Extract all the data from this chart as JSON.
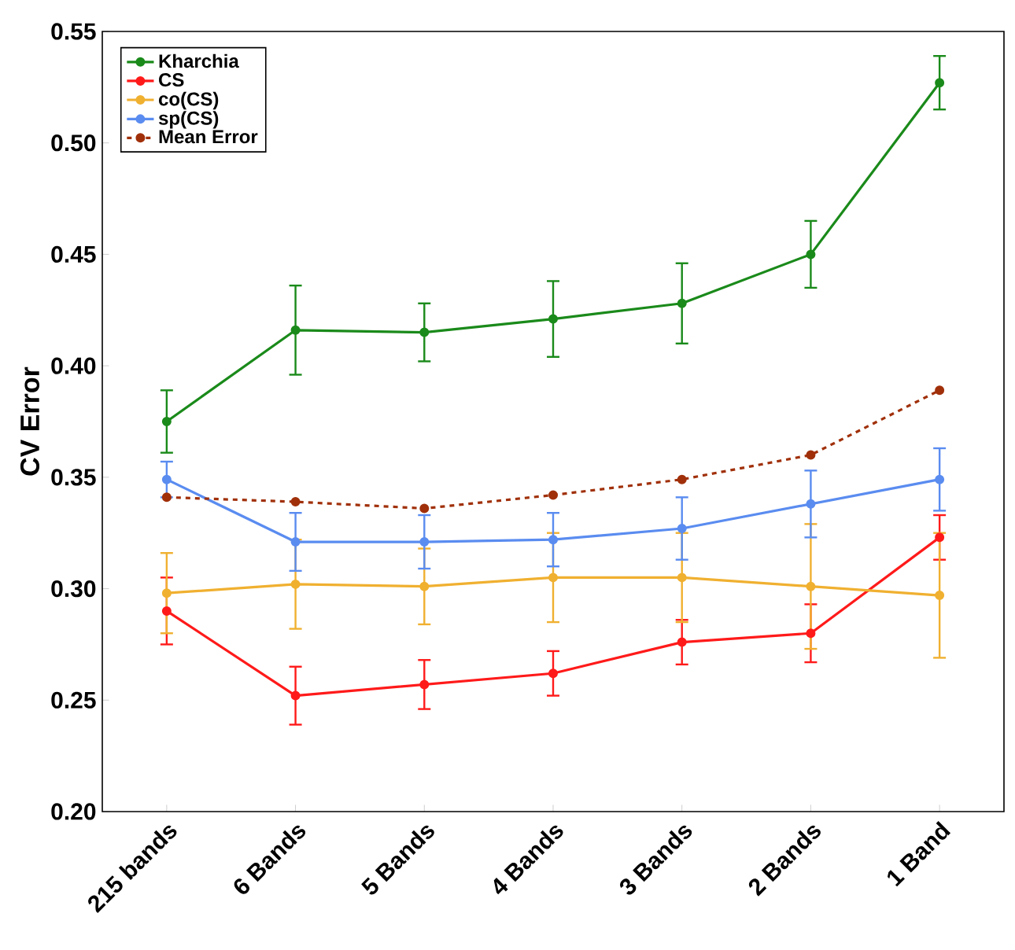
{
  "chart_data": {
    "type": "line",
    "ylabel": "CV Error",
    "categories": [
      "215 bands",
      "6 Bands",
      "5 Bands",
      "4 Bands",
      "3 Bands",
      "2 Bands",
      "1 Band"
    ],
    "ylim": [
      0.2,
      0.55
    ],
    "yticks": [
      {
        "value": 0.2,
        "label": "0.20"
      },
      0.25,
      {
        "value": 0.3,
        "label": "0.30"
      },
      0.35,
      {
        "value": 0.4,
        "label": "0.40"
      },
      0.45,
      {
        "value": 0.5,
        "label": "0.50"
      },
      0.55
    ],
    "grid": false,
    "legend": "top left",
    "marker": "circle",
    "series": [
      {
        "name": "Kharchia",
        "color": "#1a8a1a",
        "values": [
          0.375,
          0.416,
          0.415,
          0.421,
          0.428,
          0.45,
          0.527
        ],
        "errors": [
          0.014,
          0.02,
          0.013,
          0.017,
          0.018,
          0.015,
          0.012
        ]
      },
      {
        "name": "CS",
        "color": "#ff1a1a",
        "values": [
          0.29,
          0.252,
          0.257,
          0.262,
          0.276,
          0.28,
          0.323
        ],
        "errors": [
          0.015,
          0.013,
          0.011,
          0.01,
          0.01,
          0.013,
          0.01
        ]
      },
      {
        "name": "co(CS)",
        "color": "#f0b030",
        "values": [
          0.298,
          0.302,
          0.301,
          0.305,
          0.305,
          0.301,
          0.297
        ],
        "errors": [
          0.018,
          0.02,
          0.017,
          0.02,
          0.02,
          0.028,
          0.028
        ]
      },
      {
        "name": "sp(CS)",
        "color": "#5a8cf0",
        "values": [
          0.349,
          0.321,
          0.321,
          0.322,
          0.327,
          0.338,
          0.349
        ],
        "errors": [
          0.008,
          0.013,
          0.012,
          0.012,
          0.014,
          0.015,
          0.014
        ]
      },
      {
        "name": "Mean Error",
        "color": "#a0300a",
        "line_style": "dashed",
        "values": [
          0.341,
          0.339,
          0.336,
          0.342,
          0.349,
          0.36,
          0.389
        ]
      }
    ]
  }
}
